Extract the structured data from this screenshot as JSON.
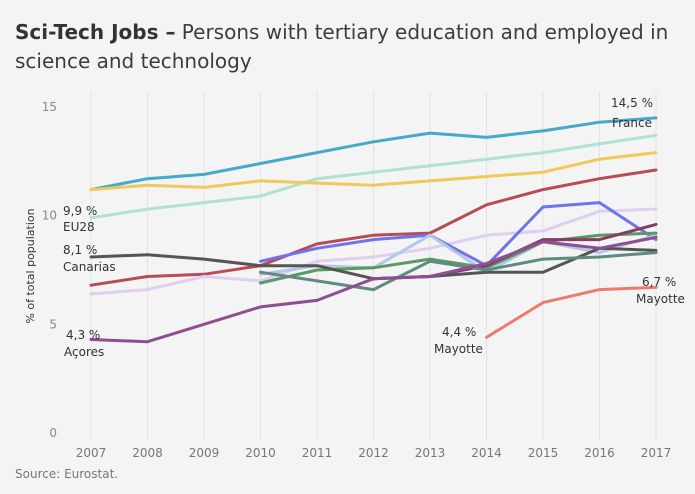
{
  "header": {
    "title_bold": "Sci-Tech Jobs –",
    "title_rest": " Persons with tertiary education and employed in science and technology"
  },
  "source": "Source: Eurostat.",
  "chart_data": {
    "type": "line",
    "ylabel": "% of total population",
    "ylim": [
      0,
      16
    ],
    "y_ticks": [
      "0",
      "5",
      "10",
      "15"
    ],
    "x": [
      "2007",
      "2008",
      "2009",
      "2010",
      "2011",
      "2012",
      "2013",
      "2014",
      "2015",
      "2016",
      "2017"
    ],
    "grid": "vertical",
    "series": [
      {
        "name": "France",
        "color": "#45a9c9",
        "values": [
          11.2,
          11.7,
          11.9,
          12.4,
          12.9,
          13.4,
          13.8,
          13.6,
          13.9,
          14.3,
          14.5
        ]
      },
      {
        "name": "EU28",
        "color": "#b2e0d2",
        "values": [
          9.9,
          10.3,
          10.6,
          10.9,
          11.7,
          12.0,
          12.3,
          12.6,
          12.9,
          13.3,
          13.7
        ]
      },
      {
        "name": "",
        "color": "#f2c85b",
        "values": [
          11.2,
          11.4,
          11.3,
          11.6,
          11.5,
          11.4,
          11.6,
          11.8,
          12.0,
          12.6,
          12.9
        ]
      },
      {
        "name": "",
        "color": "#b84b55",
        "values": [
          6.8,
          7.2,
          7.3,
          7.7,
          8.7,
          9.1,
          9.2,
          10.5,
          11.2,
          11.7,
          12.1
        ]
      },
      {
        "name": "",
        "color": "#e0cdf2",
        "values": [
          6.4,
          6.6,
          7.2,
          7.0,
          7.9,
          8.1,
          8.5,
          9.1,
          9.3,
          10.2,
          10.3
        ]
      },
      {
        "name": "",
        "color": "#6f74ec",
        "values": [
          null,
          null,
          null,
          7.9,
          8.5,
          8.9,
          9.1,
          7.7,
          10.4,
          10.6,
          8.9
        ]
      },
      {
        "name": "",
        "color": "#b3c7ea",
        "values": [
          null,
          null,
          null,
          7.3,
          7.7,
          7.6,
          9.1,
          7.4,
          8.8,
          8.3,
          9.1
        ]
      },
      {
        "name": "",
        "color": "#5a9a62",
        "values": [
          null,
          null,
          null,
          6.9,
          7.5,
          7.6,
          8.0,
          7.6,
          8.8,
          9.1,
          9.2
        ]
      },
      {
        "name": "",
        "color": "#8a3a6a",
        "values": [
          null,
          null,
          null,
          null,
          null,
          7.1,
          7.2,
          7.7,
          8.9,
          8.9,
          9.6
        ]
      },
      {
        "name": "Canarias",
        "color": "#555555",
        "values": [
          8.1,
          8.2,
          8.0,
          7.7,
          7.7,
          7.1,
          7.2,
          7.4,
          7.4,
          8.5,
          8.4
        ]
      },
      {
        "name": "",
        "color": "#5f8a86",
        "values": [
          null,
          null,
          null,
          7.4,
          7.0,
          6.6,
          7.9,
          7.5,
          8.0,
          8.1,
          8.3
        ]
      },
      {
        "name": "Açores",
        "color": "#8e4e8f",
        "values": [
          4.3,
          4.2,
          5.0,
          5.8,
          6.1,
          7.1,
          7.2,
          7.8,
          8.8,
          8.5,
          9.0
        ]
      },
      {
        "name": "Mayotte",
        "color": "#ee7a6e",
        "values": [
          null,
          null,
          null,
          null,
          null,
          null,
          null,
          4.4,
          6.0,
          6.6,
          6.7
        ]
      }
    ],
    "annotations": [
      {
        "value": "14,5 %",
        "label": "France",
        "year": "2017",
        "y": 14.5
      },
      {
        "value": "9,9 %",
        "label": "EU28",
        "year": "2007",
        "y": 9.9
      },
      {
        "value": "8,1 %",
        "label": "Canarias",
        "year": "2007",
        "y": 8.1
      },
      {
        "value": "4,3 %",
        "label": "Açores",
        "year": "2007",
        "y": 4.3
      },
      {
        "value": "4,4 %",
        "label": "Mayotte",
        "year": "2014",
        "y": 4.4
      },
      {
        "value": "6,7 %",
        "label": "Mayotte",
        "year": "2017",
        "y": 6.7
      }
    ]
  }
}
